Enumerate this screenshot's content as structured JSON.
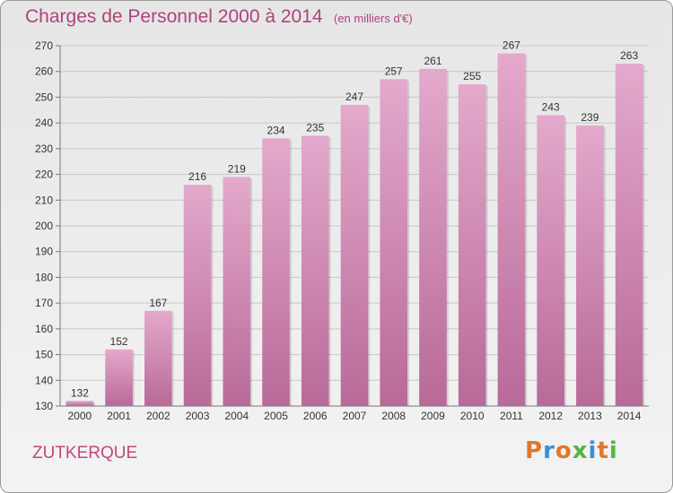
{
  "header": {
    "title": "Charges de Personnel 2000 à 2014",
    "subtitle": "(en milliers d'€)"
  },
  "footer": {
    "commune": "ZUTKERQUE",
    "logo": "Proxiti"
  },
  "colors": {
    "bar_top": "#e4a9cc",
    "bar_bottom": "#b86a98",
    "title": "#b0427a",
    "logo_letters": [
      "#e0782a",
      "#3b8fd6",
      "#e0782a",
      "#55b542",
      "#3b8fd6",
      "#e0782a",
      "#55b542"
    ]
  },
  "chart_data": {
    "type": "bar",
    "title": "Charges de Personnel 2000 à 2014",
    "subtitle": "(en milliers d'€)",
    "categories": [
      "2000",
      "2001",
      "2002",
      "2003",
      "2004",
      "2005",
      "2006",
      "2007",
      "2008",
      "2009",
      "2010",
      "2011",
      "2012",
      "2013",
      "2014"
    ],
    "values": [
      132,
      152,
      167,
      216,
      219,
      234,
      235,
      247,
      257,
      261,
      255,
      267,
      243,
      239,
      263
    ],
    "ylim": [
      130,
      270
    ],
    "yticks": [
      130,
      140,
      150,
      160,
      170,
      180,
      190,
      200,
      210,
      220,
      230,
      240,
      250,
      260,
      270
    ],
    "grid": true,
    "xlabel": "",
    "ylabel": ""
  }
}
